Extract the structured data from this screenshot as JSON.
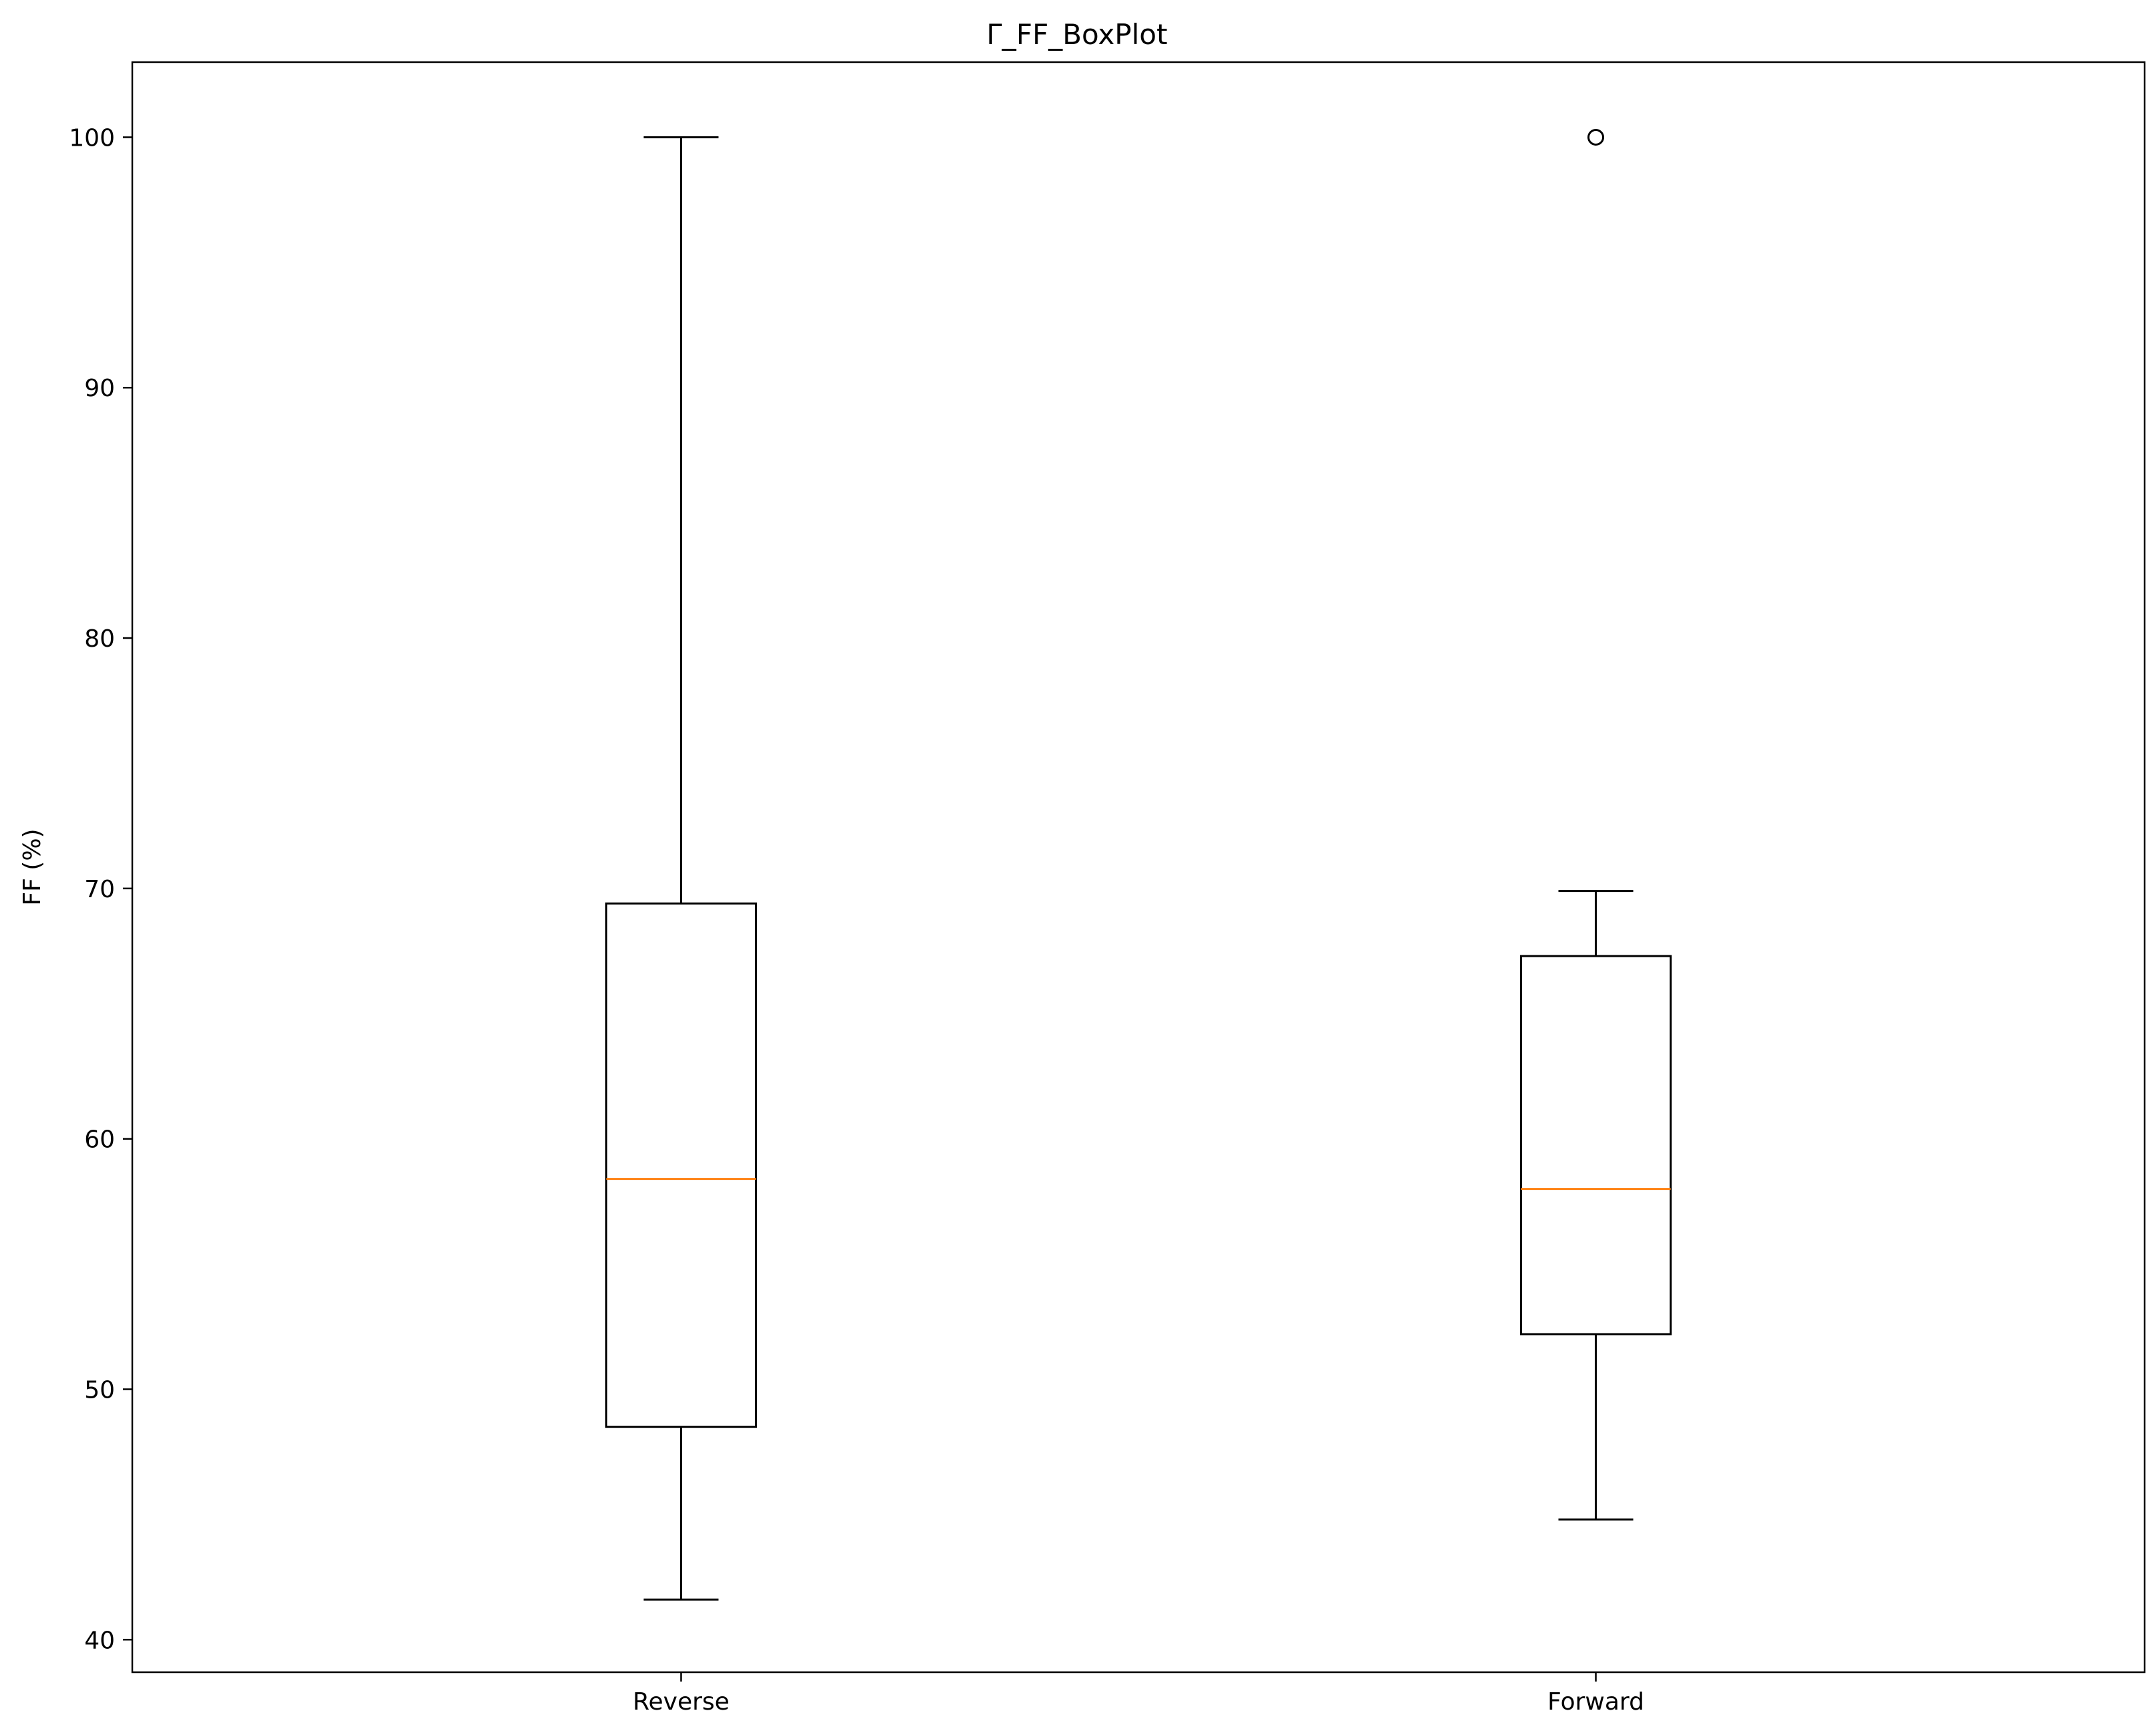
{
  "chart_data": {
    "type": "box",
    "title": "Γ_FF_BoxPlot",
    "xlabel": "",
    "ylabel": "FF (%)",
    "ylim": [
      38.7,
      103
    ],
    "yticks": [
      40,
      50,
      60,
      70,
      80,
      90,
      100
    ],
    "ytick_labels": [
      "40",
      "50",
      "60",
      "70",
      "80",
      "90",
      "100"
    ],
    "grid": false,
    "categories": [
      "Reverse",
      "Forward"
    ],
    "boxes": [
      {
        "name": "Reverse",
        "whisker_low": 41.6,
        "q1": 48.5,
        "median": 58.4,
        "q3": 69.4,
        "whisker_high": 100.0,
        "outliers": []
      },
      {
        "name": "Forward",
        "whisker_low": 44.8,
        "q1": 52.2,
        "median": 58.0,
        "q3": 67.3,
        "whisker_high": 69.9,
        "outliers": [
          100.0
        ]
      }
    ],
    "colors": {
      "box": "#000000",
      "median": "#ff7f0e",
      "outlier": "#000000"
    }
  }
}
